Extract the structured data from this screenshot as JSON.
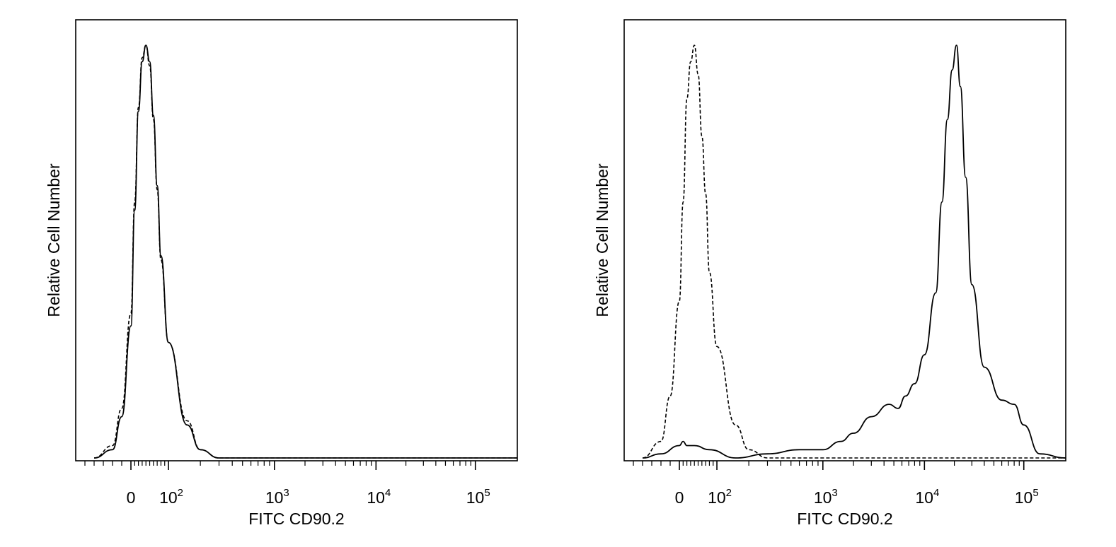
{
  "chart_data": [
    {
      "type": "line",
      "xlabel": "FITC CD90.2",
      "ylabel": "Relative Cell Number",
      "x_scale": "biexponential",
      "xlim": [
        -60,
        200000
      ],
      "ylim": [
        0,
        1.0
      ],
      "ticks": [
        {
          "label": "0",
          "value": 0,
          "exp": ""
        },
        {
          "label": "10",
          "value": 100,
          "exp": "2"
        },
        {
          "label": "10",
          "value": 1000,
          "exp": "3"
        },
        {
          "label": "10",
          "value": 10000,
          "exp": "4"
        },
        {
          "label": "10",
          "value": 100000,
          "exp": "5"
        }
      ],
      "series": [
        {
          "style": "dashed",
          "x": [
            -40,
            -20,
            -10,
            0,
            10,
            20,
            30,
            40,
            50,
            60,
            70,
            80,
            100,
            150,
            200,
            300,
            1000,
            10000,
            200000
          ],
          "y": [
            0.0,
            0.03,
            0.12,
            0.35,
            0.62,
            0.85,
            0.97,
            1.0,
            0.95,
            0.82,
            0.65,
            0.48,
            0.28,
            0.09,
            0.02,
            0.0,
            0.0,
            0.0,
            0.0
          ]
        },
        {
          "style": "solid",
          "x": [
            -40,
            -20,
            -10,
            0,
            10,
            20,
            30,
            40,
            50,
            60,
            70,
            80,
            100,
            150,
            200,
            300,
            1000,
            10000,
            200000
          ],
          "y": [
            0.0,
            0.02,
            0.1,
            0.32,
            0.6,
            0.84,
            0.96,
            1.0,
            0.96,
            0.83,
            0.66,
            0.49,
            0.28,
            0.08,
            0.02,
            0.0,
            0.0,
            0.0,
            0.0
          ]
        }
      ]
    },
    {
      "type": "line",
      "xlabel": "FITC CD90.2",
      "ylabel": "Relative Cell Number",
      "x_scale": "biexponential",
      "xlim": [
        -60,
        200000
      ],
      "ylim": [
        0,
        1.0
      ],
      "ticks": [
        {
          "label": "0",
          "value": 0,
          "exp": ""
        },
        {
          "label": "10",
          "value": 100,
          "exp": "2"
        },
        {
          "label": "10",
          "value": 1000,
          "exp": "3"
        },
        {
          "label": "10",
          "value": 10000,
          "exp": "4"
        },
        {
          "label": "10",
          "value": 100000,
          "exp": "5"
        }
      ],
      "series": [
        {
          "style": "dashed",
          "x": [
            -40,
            -20,
            -10,
            0,
            10,
            20,
            30,
            40,
            50,
            60,
            70,
            80,
            100,
            150,
            200,
            300,
            1000,
            10000,
            200000
          ],
          "y": [
            0.0,
            0.04,
            0.15,
            0.38,
            0.62,
            0.87,
            0.96,
            1.0,
            0.93,
            0.78,
            0.64,
            0.45,
            0.27,
            0.08,
            0.02,
            0.0,
            0.0,
            0.0,
            0.0
          ]
        },
        {
          "style": "solid",
          "x": [
            -40,
            -20,
            0,
            10,
            20,
            40,
            80,
            150,
            300,
            600,
            1000,
            1500,
            2000,
            3000,
            4500,
            5500,
            6500,
            8000,
            10000,
            13000,
            15000,
            17000,
            19000,
            21000,
            23000,
            26000,
            30000,
            40000,
            60000,
            80000,
            100000,
            130000,
            200000
          ],
          "y": [
            0.0,
            0.01,
            0.03,
            0.04,
            0.03,
            0.03,
            0.02,
            0.0,
            0.01,
            0.02,
            0.02,
            0.04,
            0.06,
            0.1,
            0.13,
            0.12,
            0.15,
            0.18,
            0.25,
            0.4,
            0.62,
            0.82,
            0.94,
            1.0,
            0.9,
            0.68,
            0.42,
            0.22,
            0.14,
            0.13,
            0.08,
            0.01,
            0.0
          ]
        }
      ]
    }
  ]
}
